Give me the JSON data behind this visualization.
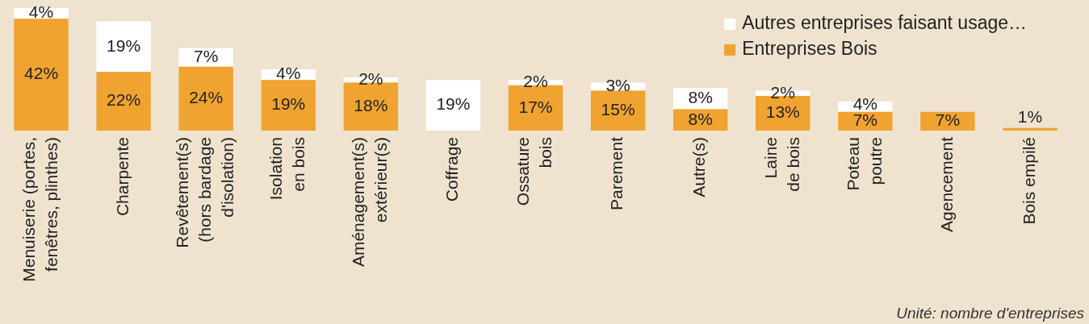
{
  "chart_data": {
    "type": "bar",
    "stacked": true,
    "legend": "top right",
    "tick_labels": "x",
    "categories": [
      "Menuiserie (portes,\nfenêtres, plinthes)",
      "Charpente",
      "Revêtement(s)\n(hors bardage\nd'isolation)",
      "Isolation\nen bois",
      "Aménagement(s)\nextérieur(s)",
      "Coffrage",
      "Ossature\nbois",
      "Parement",
      "Autre(s)",
      "Laine\nde bois",
      "Poteau\npoutre",
      "Agencement",
      "Bois empilé"
    ],
    "series": [
      {
        "name": "Entreprises Bois",
        "color": "#f0a330",
        "values": [
          42,
          22,
          24,
          19,
          18,
          null,
          17,
          15,
          8,
          13,
          7,
          7,
          1
        ],
        "value_labels": [
          "42%",
          "22%",
          "24%",
          "19%",
          "18%",
          null,
          "17%",
          "15%",
          "8%",
          "13%",
          "7%",
          "7%",
          "1%"
        ]
      },
      {
        "name": "Autres entreprises faisant usage…",
        "color": "#ffffff",
        "values": [
          4,
          19,
          7,
          4,
          2,
          19,
          2,
          3,
          8,
          2,
          4,
          null,
          null
        ],
        "value_labels": [
          "4%",
          "19%",
          "7%",
          "4%",
          "2%",
          "19%",
          "2%",
          "3%",
          "8%",
          "2%",
          "4%",
          null,
          null
        ]
      }
    ],
    "annotations": [
      "Unité: nombre d'entreprises"
    ]
  }
}
